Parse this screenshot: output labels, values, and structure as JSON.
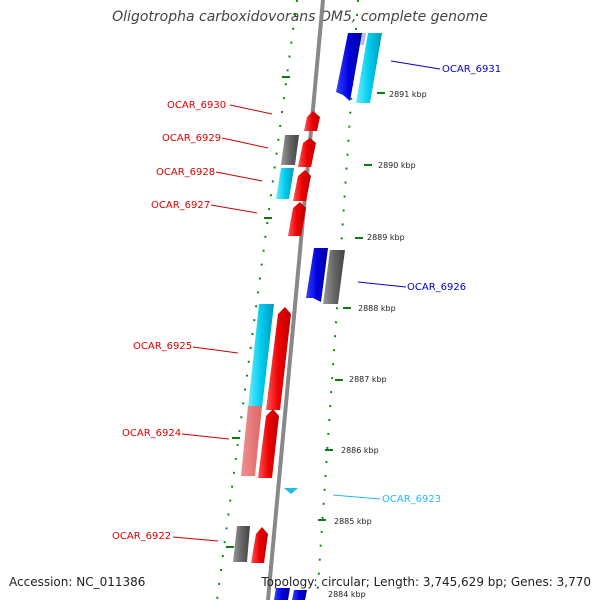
{
  "title": "Oligotropha carboxidovorans OM5, complete genome",
  "footer": {
    "accession": "Accession: NC_011386",
    "topology": "Topology: circular; Length: 3,745,629 bp; Genes: 3,770"
  },
  "colors": {
    "forward_strand": "#ee0000",
    "reverse_strand": "#0000cc",
    "cyan_gene": "#00ccee",
    "gray_gene": "#666666",
    "track_line": "#888888",
    "tick_mark": "#007700"
  },
  "ticks": [
    "2884 kbp",
    "2885 kbp",
    "2886 kbp",
    "2887 kbp",
    "2888 kbp",
    "2889 kbp",
    "2890 kbp",
    "2891 kbp"
  ],
  "gene_labels": [
    {
      "name": "OCAR_6931",
      "color": "#0000cc"
    },
    {
      "name": "OCAR_6930",
      "color": "#dd0000"
    },
    {
      "name": "OCAR_6929",
      "color": "#dd0000"
    },
    {
      "name": "OCAR_6928",
      "color": "#dd0000"
    },
    {
      "name": "OCAR_6927",
      "color": "#dd0000"
    },
    {
      "name": "OCAR_6926",
      "color": "#0000cc"
    },
    {
      "name": "OCAR_6925",
      "color": "#dd0000"
    },
    {
      "name": "OCAR_6924",
      "color": "#dd0000"
    },
    {
      "name": "OCAR_6923",
      "color": "#22bbee"
    },
    {
      "name": "OCAR_6922",
      "color": "#dd0000"
    }
  ]
}
